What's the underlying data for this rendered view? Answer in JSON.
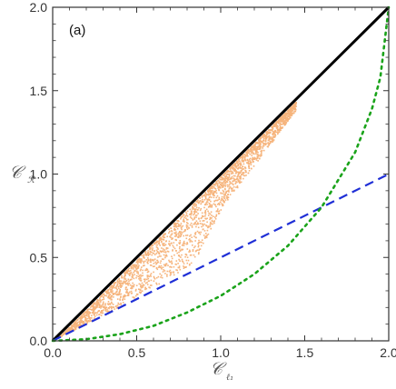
{
  "chart_data": {
    "type": "scatter",
    "panel_label": "(a)",
    "xlabel": {
      "main": "𝒞",
      "sub": "ℓ₁"
    },
    "ylabel": {
      "main": "𝒞",
      "sub": "ℛ"
    },
    "xlim": [
      0.0,
      2.0
    ],
    "ylim": [
      0.0,
      2.0
    ],
    "xticks": [
      "0.0",
      "0.5",
      "1.0",
      "1.5",
      "2.0"
    ],
    "yticks": [
      "0.0",
      "0.5",
      "1.0",
      "1.5",
      "2.0"
    ],
    "grid": false,
    "series": [
      {
        "style": "scatter",
        "color": "#f6b47c",
        "region_description_points": [
          [
            0.05,
            0.04
          ],
          [
            0.2,
            0.15
          ],
          [
            0.4,
            0.28
          ],
          [
            0.6,
            0.45
          ],
          [
            0.8,
            0.62
          ],
          [
            1.0,
            0.82
          ],
          [
            1.2,
            1.05
          ],
          [
            1.4,
            1.3
          ],
          [
            1.5,
            1.42
          ]
        ],
        "upper_bound": "y = x",
        "lower_envelope": [
          [
            0.0,
            0.0
          ],
          [
            0.3,
            0.15
          ],
          [
            0.6,
            0.32
          ],
          [
            0.85,
            0.47
          ],
          [
            1.0,
            0.78
          ],
          [
            1.2,
            1.05
          ],
          [
            1.45,
            1.38
          ]
        ]
      },
      {
        "style": "solid",
        "color": "#000000",
        "points": [
          [
            0.0,
            0.0
          ],
          [
            2.0,
            2.0
          ]
        ]
      },
      {
        "style": "dashed",
        "color": "#1f2fd6",
        "points": [
          [
            0.0,
            0.0
          ],
          [
            2.0,
            1.0
          ]
        ]
      },
      {
        "style": "dotted",
        "color": "#1aa31a",
        "points": [
          [
            0.0,
            0.0
          ],
          [
            0.2,
            0.01
          ],
          [
            0.4,
            0.04
          ],
          [
            0.6,
            0.09
          ],
          [
            0.8,
            0.17
          ],
          [
            1.0,
            0.27
          ],
          [
            1.2,
            0.4
          ],
          [
            1.4,
            0.57
          ],
          [
            1.6,
            0.8
          ],
          [
            1.8,
            1.13
          ],
          [
            1.9,
            1.39
          ],
          [
            1.95,
            1.58
          ],
          [
            2.0,
            2.0
          ]
        ]
      }
    ]
  }
}
